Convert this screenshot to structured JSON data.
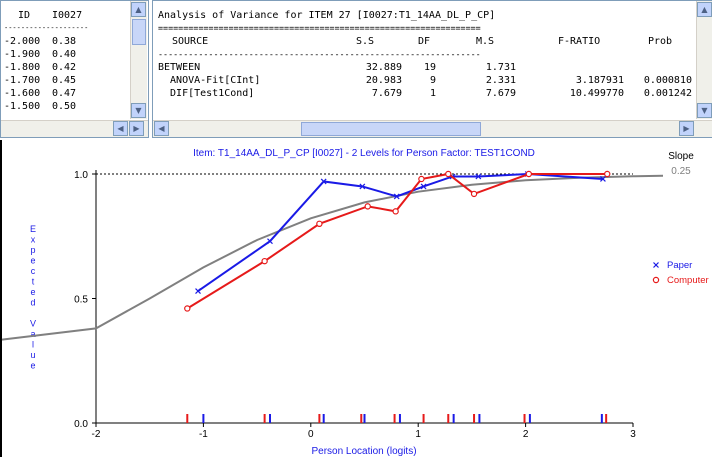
{
  "left_table": {
    "headers": [
      "ID",
      "I0027"
    ],
    "divider": "--------------------",
    "rows": [
      [
        "-2.000",
        "0.38"
      ],
      [
        "-1.900",
        "0.40"
      ],
      [
        "-1.800",
        "0.42"
      ],
      [
        "-1.700",
        "0.45"
      ],
      [
        "-1.600",
        "0.47"
      ],
      [
        "-1.500",
        "0.50"
      ]
    ]
  },
  "anova": {
    "title": "Analysis of Variance for ITEM 27 [I0027:T1_14AA_DL_P_CP]",
    "double_rule": "================================================================",
    "rule": "----------------------------------------------------------------",
    "headers": [
      "SOURCE",
      "S.S",
      "DF",
      "M.S",
      "F-RATIO",
      "Prob"
    ],
    "rows": [
      [
        "BETWEEN",
        "32.889",
        "19",
        "1.731",
        "",
        ""
      ],
      [
        "  ANOVA-Fit[CInt]",
        "20.983",
        "9",
        "2.331",
        "3.187931",
        "0.000810"
      ],
      [
        "  DIF[Test1Cond]",
        "7.679",
        "1",
        "7.679",
        "10.499770",
        "0.001242"
      ]
    ]
  },
  "scroll_icons": {
    "up": "▲",
    "down": "▼",
    "left": "◀",
    "right": "▶"
  },
  "chart_data": {
    "type": "line",
    "title": "Item: T1_14AA_DL_P_CP [I0027] - 2 Levels for Person Factor: TEST1COND",
    "xlabel": "Person Location (logits)",
    "ylabel": "Expected Value",
    "xlim": [
      -2,
      3
    ],
    "ylim": [
      0,
      1
    ],
    "x_ticks": [
      -2,
      -1,
      0,
      1,
      2,
      3
    ],
    "y_ticks": [
      "0.0",
      "0.5",
      "1.0"
    ],
    "slope_label": "Slope",
    "slope_value": "0.25",
    "theoretical_curve": {
      "color": "#808080",
      "x": [
        -2.0,
        -1.5,
        -1.0,
        -0.5,
        0.0,
        0.5,
        1.0,
        1.5,
        2.0,
        2.5,
        3.0
      ],
      "y": [
        0.38,
        0.5,
        0.625,
        0.735,
        0.822,
        0.886,
        0.929,
        0.957,
        0.975,
        0.985,
        0.991
      ]
    },
    "series": [
      {
        "name": "Paper",
        "color": "#1a1ae6",
        "marker": "×",
        "x": [
          -1.05,
          -0.38,
          0.12,
          0.48,
          0.8,
          1.05,
          1.32,
          1.56,
          2.02,
          2.72
        ],
        "y": [
          0.53,
          0.73,
          0.97,
          0.95,
          0.91,
          0.95,
          0.99,
          0.99,
          1.0,
          0.98
        ]
      },
      {
        "name": "Computer",
        "color": "#e61a1a",
        "marker": "o",
        "x": [
          -1.15,
          -0.43,
          0.08,
          0.53,
          0.79,
          1.03,
          1.28,
          1.52,
          2.03,
          2.76
        ],
        "y": [
          0.46,
          0.65,
          0.8,
          0.87,
          0.85,
          0.98,
          1.0,
          0.92,
          1.0,
          1.0
        ]
      }
    ],
    "reference_line_y": 1.0,
    "rug": {
      "Paper": [
        -1.0,
        -0.38,
        0.12,
        0.5,
        0.83,
        1.33,
        1.57,
        2.04,
        2.71
      ],
      "Computer": [
        -1.15,
        -0.43,
        0.08,
        0.47,
        0.78,
        1.05,
        1.28,
        1.52,
        1.99,
        2.75
      ]
    },
    "legend_position": "right"
  }
}
